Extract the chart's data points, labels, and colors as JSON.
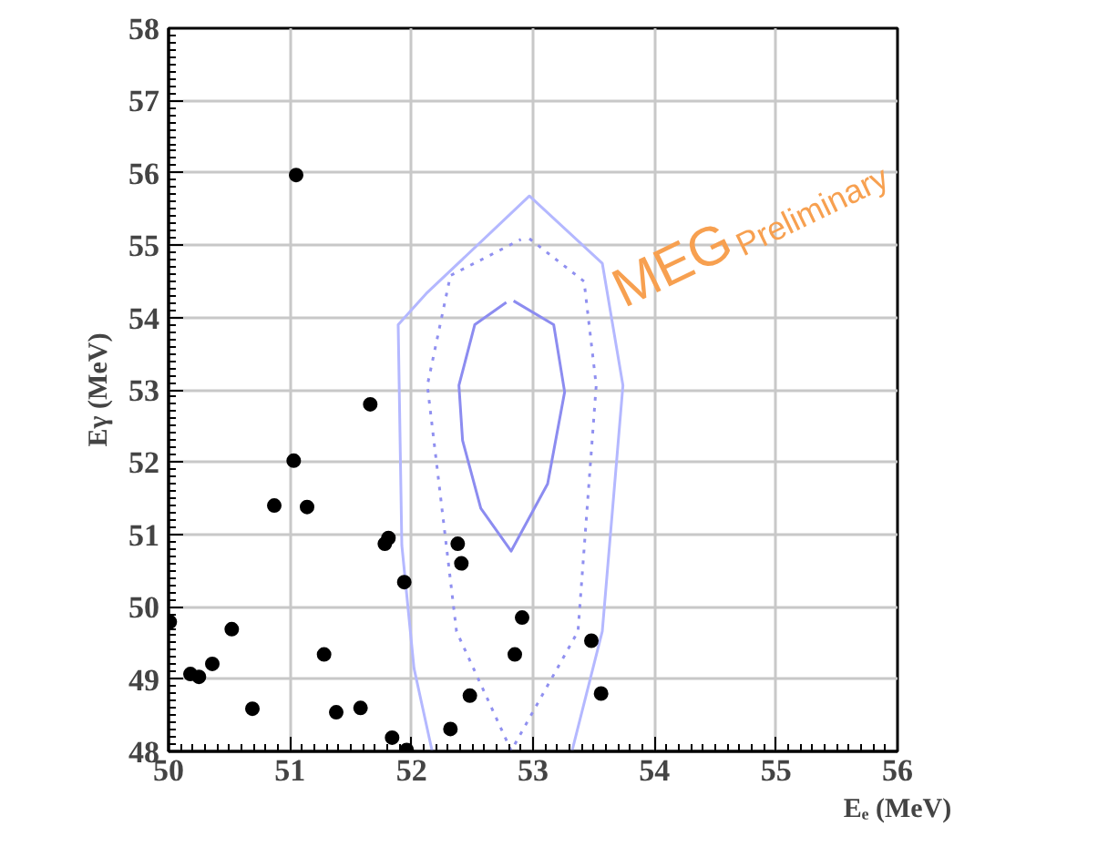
{
  "chart_data": {
    "type": "scatter",
    "xlabel": "Eₑ (MeV)",
    "ylabel": "Eγ (MeV)",
    "xlim": [
      50,
      56
    ],
    "ylim": [
      48,
      58
    ],
    "xticks": [
      50,
      51,
      52,
      53,
      54,
      55,
      56
    ],
    "yticks": [
      48,
      49,
      50,
      51,
      52,
      53,
      54,
      55,
      56,
      57,
      58
    ],
    "grid": true,
    "marker": "circle",
    "annotations": [
      "MEG",
      "Preliminary"
    ],
    "series": [
      {
        "color": "#000000",
        "x": [
          51.66,
          51.03,
          50.87,
          51.14,
          51.78,
          51.81,
          51.94,
          52.38,
          52.41,
          52.91,
          52.85,
          53.48,
          53.56,
          52.48,
          52.32,
          51.84,
          51.96,
          51.58,
          51.38,
          50.69,
          51.28,
          50.52,
          50.36,
          50.25,
          50.18,
          50.01,
          51.05
        ],
        "values": [
          52.8,
          52.02,
          51.4,
          51.38,
          50.87,
          50.95,
          50.34,
          50.87,
          50.6,
          49.85,
          49.34,
          49.53,
          48.8,
          48.77,
          48.31,
          48.19,
          48.02,
          48.6,
          48.54,
          48.59,
          49.34,
          49.69,
          49.21,
          49.03,
          49.07,
          49.79,
          55.97
        ]
      },
      {
        "type": "line",
        "color": "#8c8cf0",
        "line_style": "solid",
        "marker": "none",
        "x": [
          52.84,
          53.17,
          53.26,
          53.12,
          52.82,
          52.57,
          52.42,
          52.39,
          52.52,
          52.78
        ],
        "values": [
          54.23,
          53.9,
          52.97,
          51.7,
          50.77,
          51.36,
          52.3,
          53.06,
          53.9,
          54.21
        ]
      },
      {
        "type": "line",
        "color": "#9090f0",
        "line_style": "dotted",
        "marker": "none",
        "x": [
          52.97,
          53.42,
          53.52,
          53.37,
          52.82,
          52.37,
          52.13,
          52.32,
          52.9
        ],
        "values": [
          55.09,
          54.5,
          53.06,
          49.66,
          48.01,
          49.66,
          53.06,
          54.58,
          55.08
        ]
      },
      {
        "type": "line",
        "color": "#b4b8ff",
        "line_style": "solid",
        "marker": "none",
        "x": [
          52.17,
          52.02,
          51.92,
          51.89,
          52.12,
          52.97,
          53.57,
          53.74,
          53.57,
          53.32
        ],
        "values": [
          48.0,
          49.15,
          50.85,
          53.9,
          54.33,
          55.68,
          54.75,
          53.06,
          49.66,
          48.0
        ]
      }
    ]
  }
}
